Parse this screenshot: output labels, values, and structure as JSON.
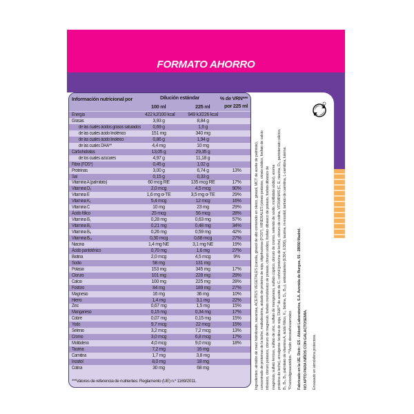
{
  "banner": {
    "title": "FORMATO AHORRO"
  },
  "colors": {
    "pink": "#f0058e",
    "purple": "#6a3d9a",
    "orange": "#f7b35c",
    "table_bg": "#d9d1ea",
    "table_dark_row": "#a99acb"
  },
  "table": {
    "header": {
      "label": "Información nutricional por",
      "group": "Dilución estándar",
      "col1": "100 ml",
      "col2": "225 ml",
      "col3a": "% de VRN***",
      "col3b": "por 225 ml"
    },
    "rows": [
      {
        "n": "Energía",
        "a": "422 kJ/100 kcal",
        "b": "949 kJ/226 kcal",
        "p": ""
      },
      {
        "n": "Grasas",
        "a": "3,93 g",
        "b": "8,84 g",
        "p": ""
      },
      {
        "n": "de las cuales ácidos grasos saturados",
        "a": "0,69 g",
        "b": "1,6 g",
        "p": "",
        "i": true
      },
      {
        "n": "de las cuales ácido linolénico",
        "a": "151 mg",
        "b": "340 mg",
        "p": "",
        "i": true
      },
      {
        "n": "de las cuales ácido linoleico",
        "a": "0,86 g",
        "b": "1,94 g",
        "p": "",
        "i": true
      },
      {
        "n": "de las cuales DHA**",
        "a": "4,4 mg",
        "b": "10 mg",
        "p": "",
        "i": true
      },
      {
        "n": "Carbohidratos",
        "a": "13,05 g",
        "b": "29,35 g",
        "p": ""
      },
      {
        "n": "de los cuales azúcares",
        "a": "4,97 g",
        "b": "11,18 g",
        "p": "",
        "i": true
      },
      {
        "n": "Fibra (FOS*)",
        "a": "0,45 g",
        "b": "1,02 g",
        "p": ""
      },
      {
        "n": "Proteínas",
        "a": "3,00 g",
        "b": "6,74 g",
        "p": "13%"
      },
      {
        "n": "Sal",
        "a": "0,15 g",
        "b": "0,33 g",
        "p": ""
      },
      {
        "n": "Vitamina A (palmitato)",
        "a": "60 mcg RE",
        "b": "135 mcg RE",
        "p": "17%"
      },
      {
        "n": "Vitamina D₃",
        "a": "2,0 mcg",
        "b": "4,5 mcg",
        "p": "90%"
      },
      {
        "n": "Vitamina E",
        "a": "1,6 mg α-TE",
        "b": "3,5 mg α-TE",
        "p": "29%"
      },
      {
        "n": "Vitamina K₁",
        "a": "5,4 mcg",
        "b": "12 mcg",
        "p": "16%"
      },
      {
        "n": "Vitamina C",
        "a": "10 mg",
        "b": "23 mg",
        "p": "29%"
      },
      {
        "n": "Ácido fólico",
        "a": "25 mcg",
        "b": "56 mcg",
        "p": "28%"
      },
      {
        "n": "Vitamina B₁",
        "a": "0,28 mg",
        "b": "0,63 mg",
        "p": "57%"
      },
      {
        "n": "Vitamina B₂",
        "a": "0,21 mg",
        "b": "0,48 mg",
        "p": "34%"
      },
      {
        "n": "Vitamina B₆",
        "a": "0,26 mg",
        "b": "0,59 mg",
        "p": "42%"
      },
      {
        "n": "Vitamina B₁₂",
        "a": "0,30 mcg",
        "b": "0,68 mcg",
        "p": "27%"
      },
      {
        "n": "Niacina",
        "a": "1,4 mg NE",
        "b": "3,1 mg NE",
        "p": "19%"
      },
      {
        "n": "Ácido pantoténico",
        "a": "0,70 mg",
        "b": "1,6 mg",
        "p": "27%"
      },
      {
        "n": "Biotina",
        "a": "2,0 mcg",
        "b": "4,5 mcg",
        "p": "9%"
      },
      {
        "n": "Sodio",
        "a": "58 mg",
        "b": "131 mg",
        "p": ""
      },
      {
        "n": "Potasio",
        "a": "153 mg",
        "b": "345 mg",
        "p": "17%"
      },
      {
        "n": "Cloruro",
        "a": "101 mg",
        "b": "228 mg",
        "p": "29%"
      },
      {
        "n": "Calcio",
        "a": "100 mg",
        "b": "225 mg",
        "p": "28%"
      },
      {
        "n": "Fósforo",
        "a": "84 mg",
        "b": "189 mg",
        "p": "27%"
      },
      {
        "n": "Magnesio",
        "a": "16 mg",
        "b": "36 mg",
        "p": "10%"
      },
      {
        "n": "Hierro",
        "a": "1,4 mg",
        "b": "3,1 mg",
        "p": "22%"
      },
      {
        "n": "Zinc",
        "a": "0,67 mg",
        "b": "1,5 mg",
        "p": "15%"
      },
      {
        "n": "Manganeso",
        "a": "0,15 mg",
        "b": "0,34 mg",
        "p": "17%"
      },
      {
        "n": "Cobre",
        "a": "0,07 mg",
        "b": "0,15 mg",
        "p": "15%"
      },
      {
        "n": "Yodo",
        "a": "9,7 mcg",
        "b": "22 mcg",
        "p": "15%"
      },
      {
        "n": "Selenio",
        "a": "3,2 mcg",
        "b": "7,2 mcg",
        "p": "13%"
      },
      {
        "n": "Cromo",
        "a": "3,0 mcg",
        "b": "6,8 mcg",
        "p": "17%"
      },
      {
        "n": "Molibdeno",
        "a": "4,0 mcg",
        "b": "9,0 mcg",
        "p": "18%"
      },
      {
        "n": "Taurina",
        "a": "7,2 mg",
        "b": "16 mg",
        "p": ""
      },
      {
        "n": "Carnitina",
        "a": "1,7 mg",
        "b": "3,8 mg",
        "p": ""
      },
      {
        "n": "Inositol",
        "a": "8,0 mg",
        "b": "18 mg",
        "p": ""
      },
      {
        "n": "Colina",
        "a": "30 mg",
        "b": "68 mg",
        "p": ""
      }
    ],
    "footnote": "***Valores de referencia de nutrientes: Reglamento (UE) n.º 1169/2011."
  },
  "side_text": {
    "ingredients_lines": [
      "Ingredientes: almidón de maíz hidrolizado, sacarosa, ACEITES VEGETALES (canola, girasol de alto contenido en oleico, girasol, MCT de aceite de palmiste),",
      "concentrado de proteínas de la leche, maltodextrina, aislado de proteína de soja, oligofructosa (FOS*), MINERALES (citrato potásico, citrato sódico, fosfato de calcio",
      "tribásico, cloruro potásico, cloruro de magnesio, fosfato monobásico de potasio, cloruro sódico, fosfato dibásico de potasio, fosfato dibásico de",
      "magnesio, sulfato ferroso, sulfato de zinc, sulfato de manganeso, sulfato cúprico, cloruro de cromo, selenito de sodio, molibdato sódico), aroma",
      "proteína de leche), emulgente: lecitina de soja, DHA** de aceite de C. cohnii (proteína de leche), cloruro de colina, VITAMINAS (C, E, niacina, D₃, pantotenato cálcico,",
      "B₁, B₆, B₂, palmitato de vitamina A, ácido fólico, K₁, biotina, D₃, B₁₂), antioxidantes (E304, E306), taurina, m-inositol, tartrato de carnitina, L-carnitina, luteína.",
      "*Fructooligosacáridos. **Ácido docosahexaenoico."
    ],
    "manufacturer": "Fabricado en la UE. Distr.: ES - Abbott Laboratories, S.A. Avenida de Burgos, 91 - 28050 Madrid.",
    "warning": "NO APTO PARA NIÑOS CON GALACTOSEMIA.",
    "packaging": "Envasado en atmósfera protectora."
  },
  "icons": {
    "recycle": "green-dot-recycle-icon"
  }
}
